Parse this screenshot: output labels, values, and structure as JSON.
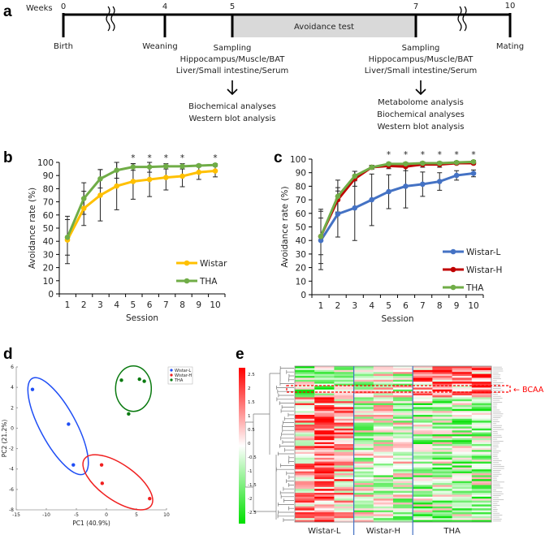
{
  "panel_labels": [
    "a",
    "b",
    "c",
    "d",
    "e"
  ],
  "timeline": {
    "weeks_label": "Weeks",
    "ticks": [
      "0",
      "4",
      "5",
      "7",
      "10"
    ],
    "avoidance_test": "Avoidance test",
    "events": {
      "birth": "Birth",
      "weaning": "Weaning",
      "mating": "Mating"
    },
    "sampling_left": [
      "Sampling",
      "Hippocampus/Muscle/BAT",
      "Liver/Small intestine/Serum"
    ],
    "analyses_left": [
      "Biochemical analyses",
      "Western blot analysis"
    ],
    "sampling_right": [
      "Sampling",
      "Hippocampus/Muscle/BAT",
      "Liver/Small intestine/Serum"
    ],
    "analyses_right": [
      "Metabolome analysis",
      "Biochemical analyses",
      "Western blot analysis"
    ]
  },
  "chart_data": [
    {
      "id": "b",
      "type": "line",
      "xlabel": "Session",
      "ylabel": "Avoidance rate (%)",
      "categories": [
        "1",
        "2",
        "3",
        "4",
        "5",
        "6",
        "7",
        "8",
        "9",
        "10"
      ],
      "ylim": [
        0,
        100
      ],
      "yticks": [
        "0",
        "10",
        "20",
        "30",
        "40",
        "50",
        "60",
        "70",
        "80",
        "90",
        "100"
      ],
      "series": [
        {
          "name": "Wistar",
          "color": "#ffc000",
          "values": [
            41,
            65,
            75,
            82,
            85.5,
            87,
            88.5,
            89.5,
            92.5,
            93.5
          ],
          "err": [
            18,
            13,
            19.5,
            18,
            13.5,
            13,
            9.5,
            8,
            5.5,
            4.5
          ]
        },
        {
          "name": "THA",
          "color": "#70ad47",
          "values": [
            43,
            72.5,
            87.5,
            94,
            96.5,
            96.5,
            97,
            97,
            97.5,
            98
          ],
          "err": [
            13.5,
            12,
            7,
            6,
            2.5,
            4,
            2,
            2,
            1,
            1
          ]
        }
      ],
      "significance": [
        "",
        "",
        "",
        "",
        "*",
        "*",
        "*",
        "*",
        "",
        "*"
      ],
      "legend": "bottom-right"
    },
    {
      "id": "c",
      "type": "line",
      "xlabel": "Session",
      "ylabel": "Avoidance rate (%)",
      "categories": [
        "1",
        "2",
        "3",
        "4",
        "5",
        "6",
        "7",
        "8",
        "9",
        "10"
      ],
      "ylim": [
        0,
        100
      ],
      "yticks": [
        "0",
        "10",
        "20",
        "30",
        "40",
        "50",
        "60",
        "70",
        "80",
        "90",
        "100"
      ],
      "series": [
        {
          "name": "Wistar-L",
          "color": "#4472c4",
          "values": [
            40,
            59.5,
            64,
            70,
            76,
            80,
            81.5,
            83.5,
            88,
            89.5
          ],
          "err": [
            21.5,
            17,
            24,
            19,
            12.5,
            16,
            9,
            6.5,
            3.5,
            2.5
          ]
        },
        {
          "name": "Wistar-H",
          "color": "#c00000",
          "values": [
            43,
            70,
            85.5,
            94,
            95,
            94.5,
            96,
            96,
            97,
            97
          ],
          "err": [
            20,
            9,
            5.5,
            1.5,
            2,
            3,
            2,
            2,
            1,
            1
          ]
        },
        {
          "name": "THA",
          "color": "#70ad47",
          "values": [
            43,
            72.5,
            87.5,
            94,
            96.5,
            96.5,
            97,
            97,
            97.5,
            98
          ],
          "err": [
            13.5,
            12,
            3.5,
            1,
            1,
            1,
            1,
            1,
            1,
            1
          ]
        }
      ],
      "significance": [
        "",
        "",
        "",
        "",
        "*",
        "*",
        "*",
        "*",
        "*",
        "*"
      ],
      "legend": "bottom-right"
    },
    {
      "id": "d",
      "type": "scatter",
      "xlabel": "PC1 (40.9%)",
      "ylabel": "PC2 (21.2%)",
      "xlim": [
        -15,
        10
      ],
      "ylim": [
        -8,
        6
      ],
      "xticks": [
        "-15",
        "-10",
        "-5",
        "0",
        "5",
        "10"
      ],
      "yticks": [
        "-8",
        "-6",
        "-4",
        "-2",
        "0",
        "2",
        "4",
        "6"
      ],
      "series": [
        {
          "name": "Wistar-L",
          "color": "#1f4ef5",
          "points": [
            [
              -12.3,
              3.8
            ],
            [
              -6.3,
              0.4
            ],
            [
              -5.5,
              -3.6
            ]
          ]
        },
        {
          "name": "Wistar-H",
          "color": "#f02020",
          "points": [
            [
              -0.8,
              -3.6
            ],
            [
              -0.7,
              -5.4
            ],
            [
              7.2,
              -6.9
            ]
          ]
        },
        {
          "name": "THA",
          "color": "#0a7a10",
          "points": [
            [
              2.5,
              4.7
            ],
            [
              5.5,
              4.8
            ],
            [
              6.3,
              4.6
            ],
            [
              3.7,
              1.4
            ]
          ]
        }
      ],
      "legend": "top-right"
    },
    {
      "id": "e",
      "type": "heatmap",
      "groups": [
        "Wistar-L",
        "Wistar-H",
        "THA"
      ],
      "group_columns": [
        3,
        3,
        4
      ],
      "rows": 80,
      "colorbar_ticks": [
        "2.5",
        "2",
        "1.5",
        "1",
        "0.5",
        "0",
        "-0.5",
        "-1",
        "-1.5",
        "-2",
        "-2.5"
      ],
      "color_high": "#ff0000",
      "color_mid": "#ffffff",
      "color_low": "#00e000",
      "annotation": "← BCAA"
    }
  ]
}
